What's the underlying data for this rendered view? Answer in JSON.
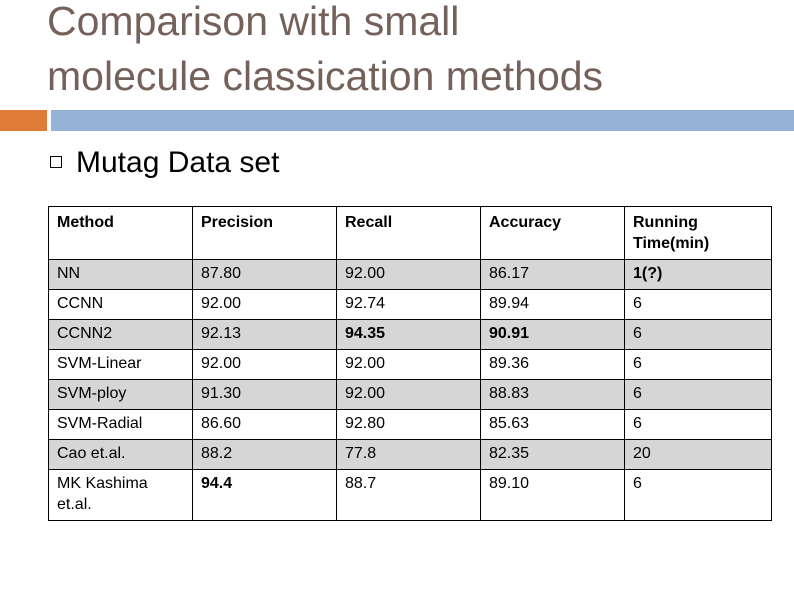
{
  "slide": {
    "title": "Comparison with small\nmolecule classication methods",
    "bullet": "Mutag Data set"
  },
  "table": {
    "headers": [
      "Method",
      "Precision",
      "Recall",
      "Accuracy",
      "Running Time(min)"
    ],
    "rows": [
      [
        "NN",
        "87.80",
        "92.00",
        "86.17",
        "1(?)"
      ],
      [
        "CCNN",
        "92.00",
        "92.74",
        "89.94",
        "6"
      ],
      [
        "CCNN2",
        "92.13",
        "94.35",
        "90.91",
        "6"
      ],
      [
        "SVM-Linear",
        "92.00",
        "92.00",
        "89.36",
        "6"
      ],
      [
        "SVM-ploy",
        "91.30",
        "92.00",
        "88.83",
        "6"
      ],
      [
        "SVM-Radial",
        "86.60",
        "92.80",
        "85.63",
        "6"
      ],
      [
        "Cao et.al.",
        "88.2",
        "77.8",
        "82.35",
        "20"
      ],
      [
        "MK Kashima et.al.",
        "94.4",
        "88.7",
        "89.10",
        "6"
      ]
    ]
  },
  "colors": {
    "title": "#74625a",
    "accent_orange": "#e07b39",
    "accent_blue": "#95b3d7",
    "row_shade": "#d6d6d6"
  }
}
